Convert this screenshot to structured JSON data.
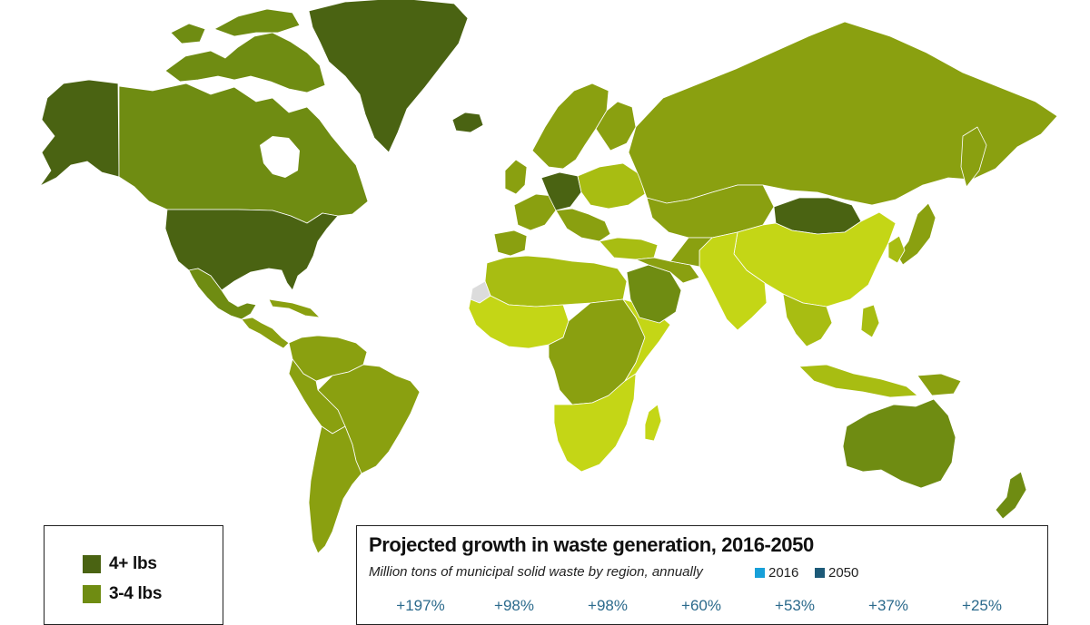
{
  "colors": {
    "level_4plus": "#4a6312",
    "level_3to4": "#6f8c12",
    "level_2to3": "#8aa010",
    "level_1to2": "#a8bd12",
    "level_lt1": "#c4d616",
    "no_data": "#dcdcdc",
    "border": "#ffffff",
    "series_2016": "#17a0d9",
    "series_2050": "#1d5a78",
    "growth_text": "#2b6a8c"
  },
  "legend": {
    "items": [
      {
        "label": "4+ lbs",
        "color": "#4a6312"
      },
      {
        "label": "3-4 lbs",
        "color": "#6f8c12"
      }
    ]
  },
  "chart": {
    "title": "Projected growth in waste generation, 2016-2050",
    "subtitle": "Million tons of municipal solid waste by region, annually",
    "series": [
      {
        "name": "2016",
        "color": "#17a0d9"
      },
      {
        "name": "2050",
        "color": "#1d5a78"
      }
    ],
    "growth_labels": [
      "+197%",
      "+98%",
      "+98%",
      "+60%",
      "+53%",
      "+37%",
      "+25%"
    ]
  },
  "chart_data": {
    "type": "bar",
    "title": "Projected growth in waste generation, 2016-2050",
    "subtitle": "Million tons of municipal solid waste by region, annually",
    "series": [
      {
        "name": "2016"
      },
      {
        "name": "2050"
      }
    ],
    "growth_pct": [
      197,
      98,
      98,
      60,
      53,
      37,
      25
    ]
  }
}
